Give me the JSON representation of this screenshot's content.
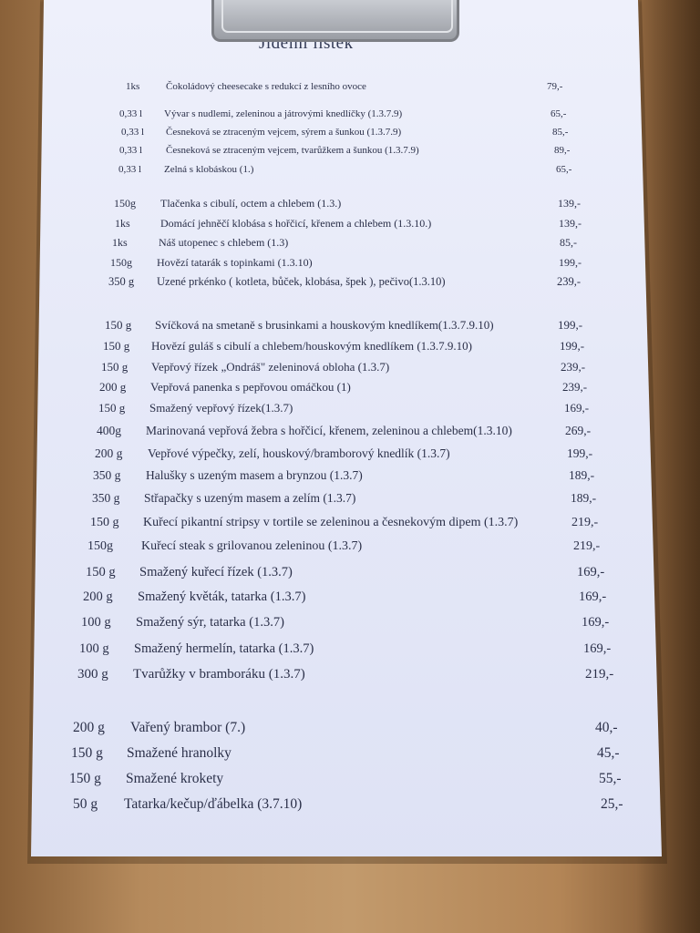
{
  "menu": {
    "title": "Jídelní lístek",
    "items": [
      {
        "qty": "1ks",
        "name": "Čokoládový cheesecake s redukcí z lesního ovoce",
        "price": "79,-"
      },
      {
        "qty": "0,33 l",
        "name": "Vývar s nudlemi, zeleninou a játrovými knedlíčky (1.3.7.9)",
        "price": "65,-"
      },
      {
        "qty": "0,33 l",
        "name": "Česneková se ztraceným vejcem, sýrem a šunkou  (1.3.7.9)",
        "price": "85,-"
      },
      {
        "qty": "0,33 l",
        "name": "Česneková se ztraceným vejcem, tvarůžkem a šunkou  (1.3.7.9)",
        "price": "89,-"
      },
      {
        "qty": "0,33 l",
        "name": "Zelná s klobáskou (1.)",
        "price": "65,-"
      },
      {
        "qty": "150g",
        "name": "Tlačenka s cibulí, octem a chlebem   (1.3.)",
        "price": "139,-"
      },
      {
        "qty": "1ks",
        "name": "Domácí jehněčí klobása s hořčicí, křenem a chlebem   (1.3.10.)",
        "price": "139,-"
      },
      {
        "qty": "1ks",
        "name": "Náš utopenec s chlebem    (1.3)",
        "price": "85,-"
      },
      {
        "qty": "150g",
        "name": "Hovězí tatarák s topinkami   (1.3.10)",
        "price": "199,-"
      },
      {
        "qty": "350 g",
        "name": "Uzené prkénko ( kotleta, bůček, klobása, špek ), pečivo(1.3.10)",
        "price": "239,-"
      },
      {
        "qty": "150 g",
        "name": "Svíčková na smetaně s brusinkami a houskovým knedlíkem(1.3.7.9.10)",
        "price": "199,-"
      },
      {
        "qty": "150 g",
        "name": "Hovězí guláš s cibulí a chlebem/houskovým knedlíkem (1.3.7.9.10)",
        "price": "199,-"
      },
      {
        "qty": "150 g",
        "name": "Vepřový řízek „Ondráš\" zeleninová obloha (1.3.7)",
        "price": "239,-"
      },
      {
        "qty": "200 g",
        "name": "Vepřová panenka s pepřovou omáčkou (1)",
        "price": "239,-"
      },
      {
        "qty": "150 g",
        "name": "Smažený vepřový řízek(1.3.7)",
        "price": "169,-"
      },
      {
        "qty": "400g",
        "name": "Marinovaná vepřová žebra s hořčicí, křenem, zeleninou a chlebem(1.3.10)",
        "price": "269,-"
      },
      {
        "qty": "200 g",
        "name": "Vepřové výpečky, zelí, houskový/bramborový  knedlík (1.3.7)",
        "price": "199,-"
      },
      {
        "qty": "350 g",
        "name": "Halušky s uzeným masem a brynzou (1.3.7)",
        "price": "189,-"
      },
      {
        "qty": "350 g",
        "name": "Střapačky s uzeným masem a zelím (1.3.7)",
        "price": "189,-"
      },
      {
        "qty": "150 g",
        "name": "Kuřecí pikantní stripsy v tortile se zeleninou a česnekovým dipem (1.3.7)",
        "price": "219,-"
      },
      {
        "qty": "150g",
        "name": "Kuřecí steak s grilovanou zeleninou   (1.3.7)",
        "price": "219,-"
      },
      {
        "qty": "150 g",
        "name": "Smažený kuřecí řízek (1.3.7)",
        "price": "169,-"
      },
      {
        "qty": "200 g",
        "name": "Smažený květák, tatarka (1.3.7)",
        "price": "169,-"
      },
      {
        "qty": "100 g",
        "name": "Smažený sýr, tatarka (1.3.7)",
        "price": "169,-"
      },
      {
        "qty": "100 g",
        "name": "Smažený hermelín, tatarka (1.3.7)",
        "price": "169,-"
      },
      {
        "qty": "300 g",
        "name": "Tvarůžky v bramboráku (1.3.7)",
        "price": "219,-"
      },
      {
        "qty": "200 g",
        "name": "Vařený brambor (7.)",
        "price": "40,-"
      },
      {
        "qty": "150 g",
        "name": "Smažené hranolky",
        "price": "45,-"
      },
      {
        "qty": "150 g",
        "name": "Smažené krokety",
        "price": "55,-"
      },
      {
        "qty": "50  g",
        "name": "Tatarka/kečup/ďábelka   (3.7.10)",
        "price": "25,-"
      }
    ]
  }
}
